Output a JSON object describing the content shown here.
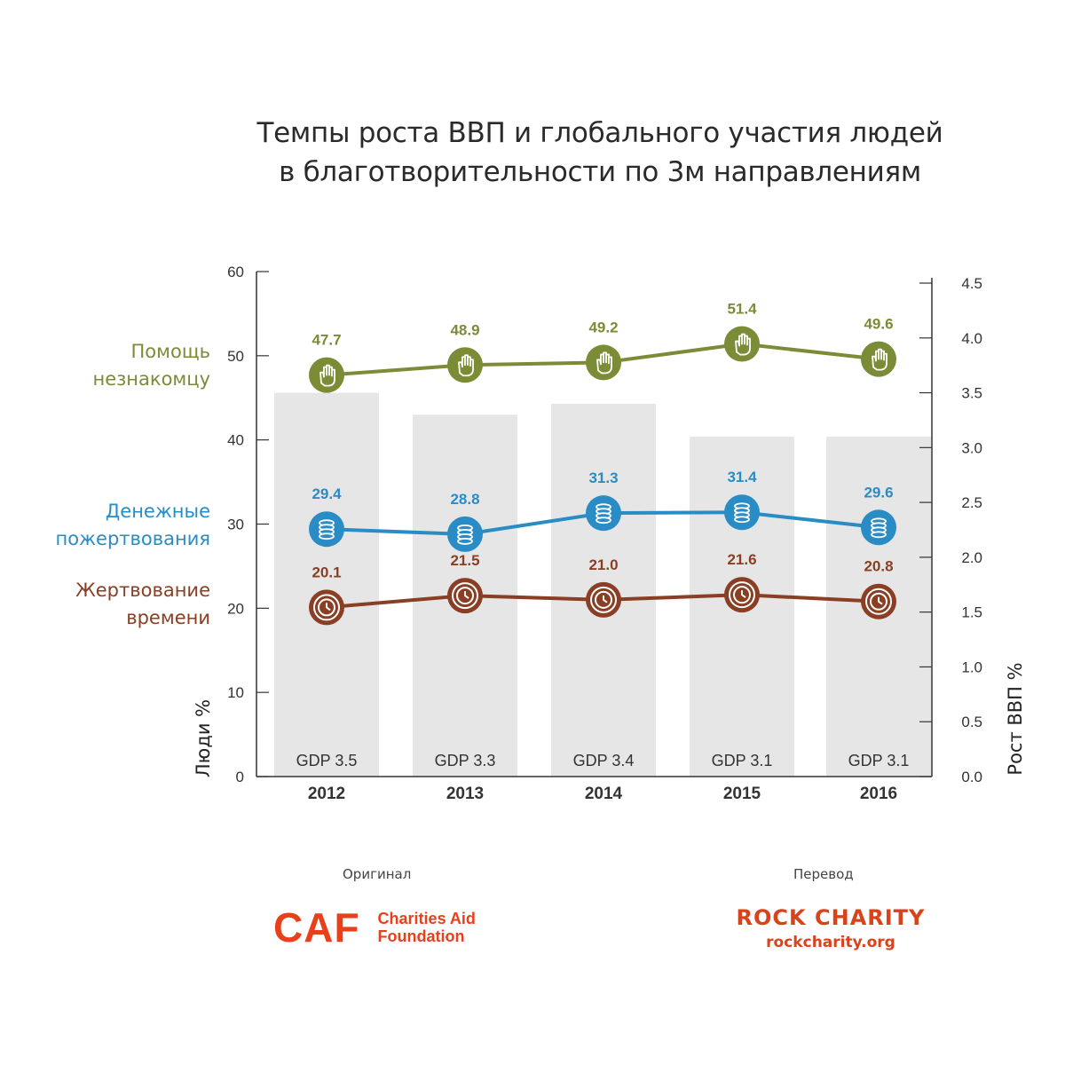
{
  "title_lines": [
    "Темпы роста ВВП и глобального участия людей",
    "в благотворительности по 3м направлениям"
  ],
  "chart_data": {
    "type": "line",
    "x": [
      "2012",
      "2013",
      "2014",
      "2015",
      "2016"
    ],
    "ylabel_left": "Люди %",
    "ylabel_right": "Рост ВВП %",
    "ylim_left": [
      0,
      60
    ],
    "ylim_right": [
      0,
      4.5
    ],
    "yticks_left": [
      "0",
      "10",
      "20",
      "30",
      "40",
      "50",
      "60"
    ],
    "yticks_right": [
      "0.0",
      "0.5",
      "1.0",
      "1.5",
      "2.0",
      "2.5",
      "3.0",
      "3.5",
      "4.0",
      "4.5"
    ],
    "bars": {
      "values": [
        3.5,
        3.3,
        3.4,
        3.1,
        3.1
      ],
      "labels": [
        "GDP 3.5",
        "GDP 3.3",
        "GDP 3.4",
        "GDP 3.1",
        "GDP 3.1"
      ],
      "color": "#e6e6e6"
    },
    "series": [
      {
        "name_lines": [
          "Помощь",
          "незнакомцу"
        ],
        "values": [
          47.7,
          48.9,
          49.2,
          51.4,
          49.6
        ],
        "labels": [
          "47.7",
          "48.9",
          "49.2",
          "51.4",
          "49.6"
        ],
        "color": "#7a8c36",
        "icon": "hand-icon"
      },
      {
        "name_lines": [
          "Денежные",
          "пожертвования"
        ],
        "values": [
          29.4,
          28.8,
          31.3,
          31.4,
          29.6
        ],
        "labels": [
          "29.4",
          "28.8",
          "31.3",
          "31.4",
          "29.6"
        ],
        "color": "#2a8cc4",
        "icon": "coins-icon"
      },
      {
        "name_lines": [
          "Жертвование",
          "времени"
        ],
        "values": [
          20.1,
          21.5,
          21.0,
          21.6,
          20.8
        ],
        "labels": [
          "20.1",
          "21.5",
          "21.0",
          "21.6",
          "20.8"
        ],
        "color": "#8a3f24",
        "icon": "clock-icon"
      }
    ]
  },
  "footer": {
    "original_label": "Оригинал",
    "translation_label": "Перевод",
    "caf": {
      "mark": "CAF",
      "line1": "Charities Aid",
      "line2": "Foundation"
    },
    "rock": {
      "name": "ROCK CHARITY",
      "url": "rockcharity.org"
    }
  }
}
